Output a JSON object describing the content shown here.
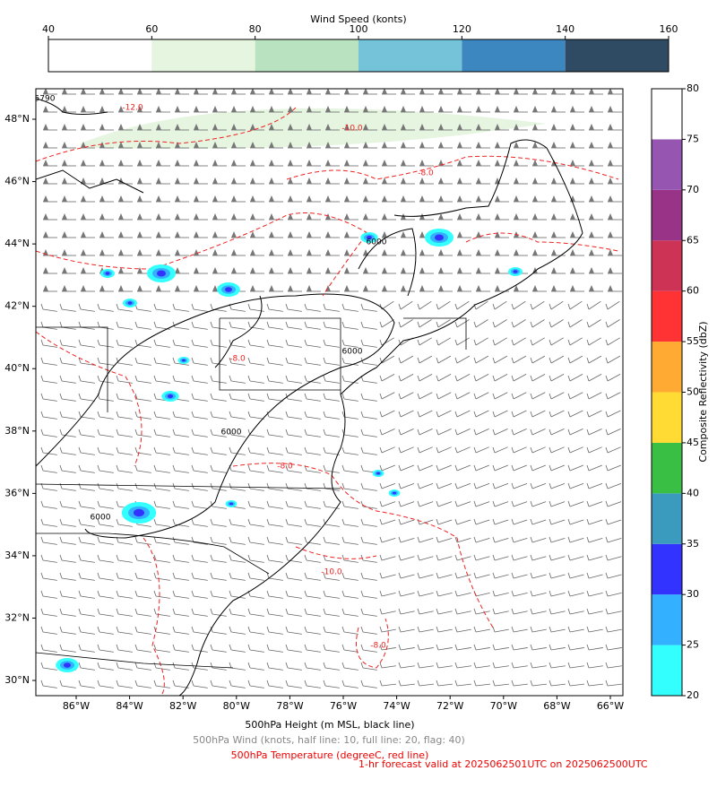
{
  "wind_colorbar": {
    "title": "Wind Speed (konts)",
    "ticks": [
      40,
      60,
      80,
      100,
      120,
      140,
      160
    ],
    "colors": [
      "#ffffff",
      "#e5f5e0",
      "#b9e3c0",
      "#74c3d9",
      "#3d87c0",
      "#2f4b63"
    ]
  },
  "reflectivity_colorbar": {
    "label": "Composite Reflectivity (dbZ)",
    "ticks": [
      20,
      25,
      30,
      35,
      40,
      45,
      50,
      55,
      60,
      65,
      70,
      75,
      80
    ],
    "colors": [
      "#33ffff",
      "#33b0ff",
      "#3333ff",
      "#3a9bbf",
      "#3abf45",
      "#ffdb33",
      "#ffab33",
      "#ff3333",
      "#cc3355",
      "#983388",
      "#9555b0",
      "#ffffff"
    ]
  },
  "map": {
    "lon_ticks": [
      {
        "value": -86,
        "label": "86°W"
      },
      {
        "value": -84,
        "label": "84°W"
      },
      {
        "value": -82,
        "label": "82°W"
      },
      {
        "value": -80,
        "label": "80°W"
      },
      {
        "value": -78,
        "label": "78°W"
      },
      {
        "value": -76,
        "label": "76°W"
      },
      {
        "value": -74,
        "label": "74°W"
      },
      {
        "value": -72,
        "label": "72°W"
      },
      {
        "value": -70,
        "label": "70°W"
      },
      {
        "value": -68,
        "label": "68°W"
      },
      {
        "value": -66,
        "label": "66°W"
      }
    ],
    "lat_ticks": [
      {
        "value": 48,
        "label": "48°N"
      },
      {
        "value": 46,
        "label": "46°N"
      },
      {
        "value": 44,
        "label": "44°N"
      },
      {
        "value": 42,
        "label": "42°N"
      },
      {
        "value": 40,
        "label": "40°N"
      },
      {
        "value": 38,
        "label": "38°N"
      },
      {
        "value": 36,
        "label": "36°N"
      },
      {
        "value": 34,
        "label": "34°N"
      },
      {
        "value": 32,
        "label": "32°N"
      },
      {
        "value": 30,
        "label": "30°N"
      }
    ],
    "height_labels": [
      "5790",
      "6000",
      "6000",
      "6000",
      "6000"
    ],
    "temperature_labels": [
      "-12.0",
      "-10.0",
      "-8.0",
      "-8.0",
      "-8.0",
      "-10.0",
      "-8.0"
    ]
  },
  "captions": {
    "height": "500hPa Height (m MSL, black line)",
    "wind": "500hPa Wind (knots, half line: 10, full line: 20, flag: 40)",
    "temperature": "500hPa Temperature (degreeC, red line)",
    "forecast": "1-hr forecast valid at 2025062501UTC on 2025062500UTC"
  }
}
